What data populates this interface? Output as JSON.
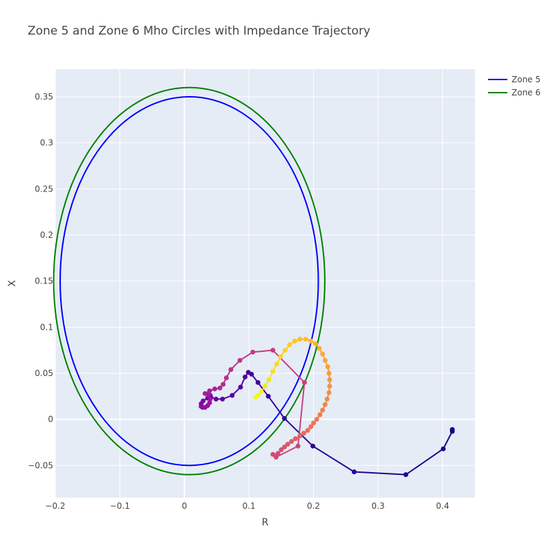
{
  "chart_data": {
    "type": "scatter",
    "title": "Zone 5 and Zone 6 Mho Circles with Impedance Trajectory",
    "xlabel": "R",
    "ylabel": "X",
    "xlim": [
      -0.2,
      0.45
    ],
    "ylim": [
      -0.085,
      0.38
    ],
    "x_ticks": [
      -0.2,
      -0.1,
      0,
      0.1,
      0.2,
      0.3,
      0.4
    ],
    "x_tick_labels": [
      "−0.2",
      "−0.1",
      "0",
      "0.1",
      "0.2",
      "0.3",
      "0.4"
    ],
    "y_ticks": [
      -0.05,
      0,
      0.05,
      0.1,
      0.15,
      0.2,
      0.25,
      0.3,
      0.35
    ],
    "y_tick_labels": [
      "−0.05",
      "0",
      "0.05",
      "0.1",
      "0.15",
      "0.2",
      "0.25",
      "0.3",
      "0.35"
    ],
    "grid": true,
    "legend_position": "top-right",
    "colors": {
      "zone5": "#0000ff",
      "zone6": "#008000",
      "plot_bg": "#e5ecf6",
      "grid": "#ffffff"
    },
    "circles": [
      {
        "name": "Zone 5",
        "center": [
          0.0075,
          0.15
        ],
        "radius_r": 0.2,
        "radius_x": 0.2,
        "color": "#0000ff"
      },
      {
        "name": "Zone 6",
        "center": [
          0.0075,
          0.15
        ],
        "radius_r": 0.21,
        "radius_x": 0.21,
        "color": "#008000"
      }
    ],
    "trajectory": [
      [
        0.415,
        -0.011
      ],
      [
        0.415,
        -0.013
      ],
      [
        0.401,
        -0.032
      ],
      [
        0.343,
        -0.06
      ],
      [
        0.263,
        -0.057
      ],
      [
        0.199,
        -0.029
      ],
      [
        0.155,
        0.001
      ],
      [
        0.13,
        0.025
      ],
      [
        0.114,
        0.04
      ],
      [
        0.104,
        0.049
      ],
      [
        0.099,
        0.051
      ],
      [
        0.094,
        0.046
      ],
      [
        0.087,
        0.035
      ],
      [
        0.074,
        0.026
      ],
      [
        0.059,
        0.022
      ],
      [
        0.049,
        0.022
      ],
      [
        0.041,
        0.024
      ],
      [
        0.04,
        0.026
      ],
      [
        0.041,
        0.024
      ],
      [
        0.036,
        0.023
      ],
      [
        0.029,
        0.02
      ],
      [
        0.026,
        0.017
      ],
      [
        0.026,
        0.014
      ],
      [
        0.028,
        0.013
      ],
      [
        0.032,
        0.013
      ],
      [
        0.036,
        0.015
      ],
      [
        0.039,
        0.018
      ],
      [
        0.04,
        0.022
      ],
      [
        0.037,
        0.027
      ],
      [
        0.032,
        0.028
      ],
      [
        0.039,
        0.031
      ],
      [
        0.047,
        0.033
      ],
      [
        0.055,
        0.034
      ],
      [
        0.06,
        0.038
      ],
      [
        0.065,
        0.045
      ],
      [
        0.072,
        0.054
      ],
      [
        0.086,
        0.064
      ],
      [
        0.106,
        0.073
      ],
      [
        0.137,
        0.075
      ],
      [
        0.186,
        0.04
      ],
      [
        0.176,
        -0.029
      ],
      [
        0.142,
        -0.041
      ],
      [
        0.137,
        -0.038
      ],
      [
        0.145,
        -0.037
      ],
      [
        0.15,
        -0.033
      ],
      [
        0.155,
        -0.03
      ],
      [
        0.16,
        -0.027
      ],
      [
        0.166,
        -0.024
      ],
      [
        0.172,
        -0.021
      ],
      [
        0.179,
        -0.018
      ],
      [
        0.185,
        -0.015
      ],
      [
        0.191,
        -0.012
      ],
      [
        0.196,
        -0.008
      ],
      [
        0.2,
        -0.004
      ],
      [
        0.205,
        0.0
      ],
      [
        0.21,
        0.005
      ],
      [
        0.214,
        0.01
      ],
      [
        0.218,
        0.016
      ],
      [
        0.221,
        0.022
      ],
      [
        0.224,
        0.029
      ],
      [
        0.225,
        0.036
      ],
      [
        0.225,
        0.043
      ],
      [
        0.224,
        0.05
      ],
      [
        0.222,
        0.057
      ],
      [
        0.218,
        0.064
      ],
      [
        0.214,
        0.071
      ],
      [
        0.209,
        0.077
      ],
      [
        0.203,
        0.082
      ],
      [
        0.196,
        0.085
      ],
      [
        0.188,
        0.087
      ],
      [
        0.179,
        0.087
      ],
      [
        0.171,
        0.085
      ],
      [
        0.163,
        0.081
      ],
      [
        0.156,
        0.075
      ],
      [
        0.149,
        0.068
      ],
      [
        0.143,
        0.06
      ],
      [
        0.137,
        0.052
      ],
      [
        0.131,
        0.043
      ],
      [
        0.125,
        0.036
      ],
      [
        0.119,
        0.03
      ],
      [
        0.114,
        0.026
      ],
      [
        0.111,
        0.024
      ]
    ],
    "trajectory_colorscale": [
      "#0d0887",
      "#46039f",
      "#7201a8",
      "#9c179e",
      "#bd3786",
      "#d8576b",
      "#ed7953",
      "#fb9f3a",
      "#fdca26",
      "#f0f921"
    ],
    "legend": [
      "Zone 5",
      "Zone 6"
    ]
  }
}
